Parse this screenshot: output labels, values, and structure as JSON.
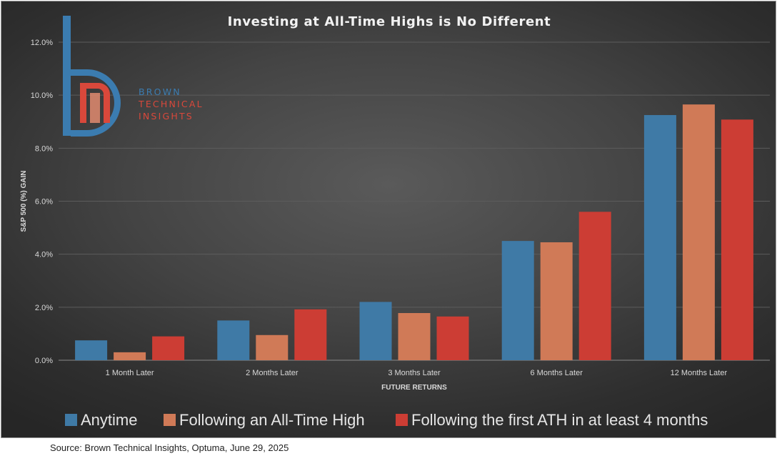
{
  "colors": {
    "anytime": "#3f7aa6",
    "following_ath": "#d07a57",
    "first_ath": "#cc3d34",
    "logo_blue": "#3b7cb0",
    "logo_red": "#d9483b"
  },
  "logo": {
    "line1": "BROWN",
    "line2": "TECHNICAL",
    "line3": "INSIGHTS"
  },
  "source": "Source: Brown Technical Insights, Optuma, June 29, 2025",
  "chart_data": {
    "type": "bar",
    "title": "Investing at All-Time Highs is No Different",
    "xlabel": "FUTURE RETURNS",
    "ylabel": "S&P 500 (%) GAIN",
    "categories": [
      "1 Month Later",
      "2 Months Later",
      "3 Months Later",
      "6 Months Later",
      "12 Months Later"
    ],
    "series": [
      {
        "name": "Anytime",
        "values": [
          0.75,
          1.5,
          2.2,
          4.5,
          9.25
        ]
      },
      {
        "name": "Following an All-Time High",
        "values": [
          0.3,
          0.95,
          1.78,
          4.45,
          9.65
        ]
      },
      {
        "name": "Following the first ATH in at least 4 months",
        "values": [
          0.9,
          1.92,
          1.65,
          5.6,
          9.08
        ]
      }
    ],
    "ylim": [
      0,
      12
    ],
    "yticks": [
      "0.0%",
      "2.0%",
      "4.0%",
      "6.0%",
      "8.0%",
      "10.0%",
      "12.0%"
    ],
    "grid": true,
    "legend": "bottom"
  }
}
